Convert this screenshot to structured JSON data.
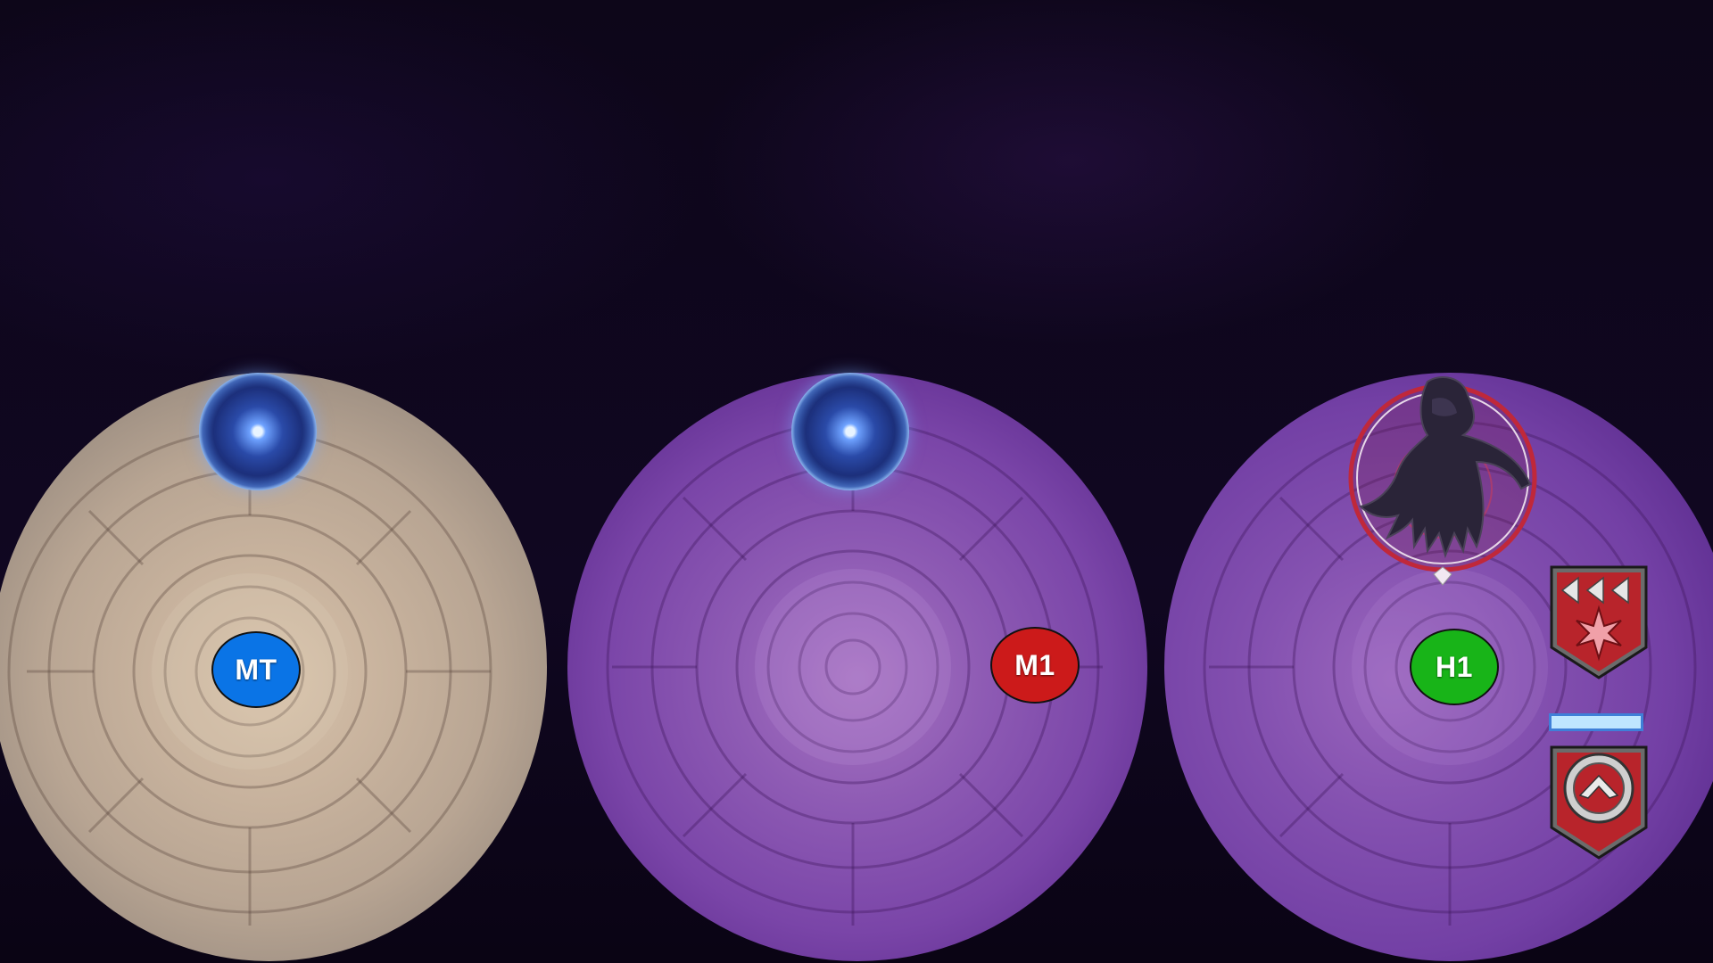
{
  "arenas": [
    {
      "theme": "stone",
      "tint": "#c7b29d"
    },
    {
      "theme": "void",
      "tint": "#7a45a8"
    },
    {
      "theme": "void",
      "tint": "#7340a5"
    }
  ],
  "markers": [
    {
      "label": "MT",
      "color": "#0a74e6",
      "role": "tank"
    },
    {
      "label": "M1",
      "color": "#cc1a1a",
      "role": "melee"
    },
    {
      "label": "H1",
      "color": "#18b418",
      "role": "healer"
    }
  ],
  "orbs": [
    {
      "icon": "blue-orb-icon"
    },
    {
      "icon": "blue-orb-icon"
    }
  ],
  "enemy": {
    "icon": "shadow-monster-icon",
    "ring_color": "#c0283a"
  },
  "debuffs": [
    {
      "icon": "red-star-debuff-icon",
      "color": "#b8242b"
    },
    {
      "icon": "red-chevron-debuff-icon",
      "color": "#b8242b"
    }
  ],
  "cast_bar": {
    "fill": 1.0,
    "color": "#bfe6ff"
  }
}
